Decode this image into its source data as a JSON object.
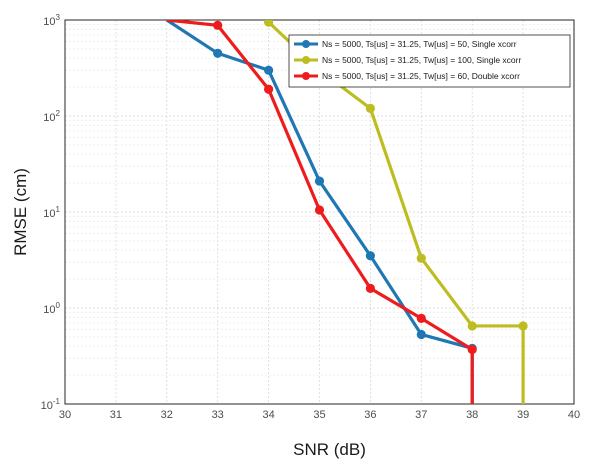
{
  "chart_data": {
    "type": "line",
    "xlabel": "SNR (dB)",
    "ylabel": "RMSE (cm)",
    "xlim": [
      30,
      40
    ],
    "ylim": [
      0.1,
      1000
    ],
    "yscale": "log",
    "grid": true,
    "xticks": [
      "30",
      "31",
      "32",
      "33",
      "34",
      "35",
      "36",
      "37",
      "38",
      "39",
      "40"
    ],
    "yticks": [
      {
        "base": "10",
        "exp": "-1"
      },
      {
        "base": "10",
        "exp": "0"
      },
      {
        "base": "10",
        "exp": "1"
      },
      {
        "base": "10",
        "exp": "2"
      },
      {
        "base": "10",
        "exp": "3"
      }
    ],
    "legend_position": "top-right",
    "series": [
      {
        "name": "Ns = 5000, Ts[us] = 31.25, Tw[us] = 50, Single xcorr",
        "color": "#1f77b4",
        "x": [
          32,
          33,
          34,
          35,
          36,
          37,
          38
        ],
        "y": [
          1000,
          450,
          300,
          21,
          3.5,
          0.53,
          0.38
        ],
        "markers": [
          false,
          true,
          true,
          true,
          true,
          true,
          true
        ],
        "tail": {
          "x": 38,
          "y": 0.1
        }
      },
      {
        "name": "Ns = 5000, Ts[us] = 31.25, Tw[us] = 100, Single xcorr",
        "color": "#bdbd22",
        "x": [
          34,
          35,
          36,
          37,
          38,
          39
        ],
        "y": [
          950,
          300,
          120,
          3.3,
          0.65,
          0.65
        ],
        "markers": [
          true,
          false,
          true,
          true,
          true,
          true
        ],
        "tail": {
          "x": 39,
          "y": 0.1
        }
      },
      {
        "name": "Ns = 5000, Ts[us] = 31.25, Tw[us] = 60, Double xcorr",
        "color": "#ee1c1c",
        "x": [
          32,
          33,
          34,
          35,
          36,
          37,
          38
        ],
        "y": [
          1000,
          880,
          190,
          10.5,
          1.6,
          0.78,
          0.37
        ],
        "markers": [
          false,
          true,
          true,
          true,
          true,
          true,
          true
        ],
        "tail": {
          "x": 38,
          "y": 0.1
        }
      }
    ]
  }
}
